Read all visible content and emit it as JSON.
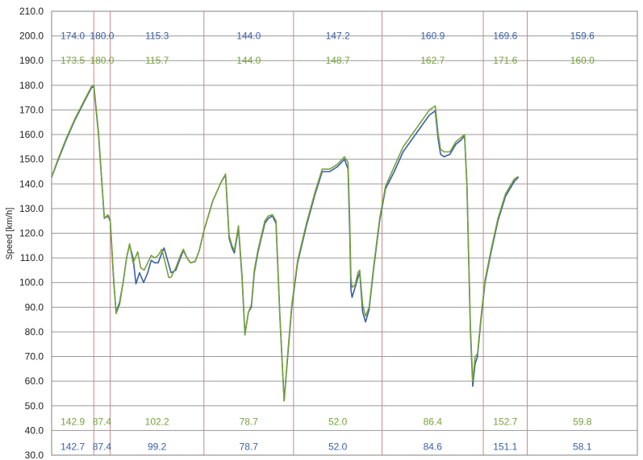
{
  "chart_data": {
    "type": "line",
    "title": "",
    "xlabel": "",
    "ylabel": "Speed [km/h]",
    "ylim": [
      30,
      210
    ],
    "y_ticks": [
      "30.0",
      "40.0",
      "50.0",
      "60.0",
      "70.0",
      "80.0",
      "90.0",
      "100.0",
      "110.0",
      "120.0",
      "130.0",
      "140.0",
      "150.0",
      "160.0",
      "170.0",
      "180.0",
      "190.0",
      "200.0",
      "210.0"
    ],
    "x_range": [
      0,
      1000
    ],
    "grid": true,
    "legend": "none",
    "colors": {
      "blue": "#3a5ea8",
      "green": "#77a13a",
      "hgrid": "#9a9a9a",
      "vgrid": "#c98a8a",
      "frame": "#808080"
    },
    "section_boundaries": [
      0,
      72,
      100,
      260,
      413,
      564,
      737,
      812,
      1000
    ],
    "annotations": {
      "top_blue": [
        "174.0",
        "180.0",
        "115.3",
        "144.0",
        "147.2",
        "160.9",
        "169.6",
        "159.6"
      ],
      "top_green": [
        "173.5",
        "180.0",
        "115.7",
        "144.0",
        "148.7",
        "162.7",
        "171.6",
        "160.0"
      ],
      "bottom_green": [
        "142.9",
        "87.4",
        "102.2",
        "78.7",
        "52.0",
        "86.4",
        "152.7",
        "59.8"
      ],
      "bottom_blue": [
        "142.7",
        "87.4",
        "99.2",
        "78.7",
        "52.0",
        "84.6",
        "151.1",
        "58.1"
      ]
    },
    "series": [
      {
        "color": "blue",
        "points": [
          [
            0,
            142.7
          ],
          [
            10,
            149
          ],
          [
            25,
            158
          ],
          [
            40,
            166
          ],
          [
            55,
            173
          ],
          [
            68,
            179
          ],
          [
            72,
            179.6
          ],
          [
            80,
            160
          ],
          [
            90,
            126
          ],
          [
            96,
            127
          ],
          [
            100,
            125
          ],
          [
            106,
            100
          ],
          [
            110,
            88
          ],
          [
            116,
            92
          ],
          [
            122,
            100
          ],
          [
            128,
            110
          ],
          [
            133,
            115.3
          ],
          [
            139,
            110
          ],
          [
            144,
            99.5
          ],
          [
            150,
            104
          ],
          [
            157,
            100
          ],
          [
            164,
            104
          ],
          [
            170,
            109
          ],
          [
            176,
            108
          ],
          [
            182,
            108
          ],
          [
            188,
            112
          ],
          [
            192,
            114
          ],
          [
            198,
            109
          ],
          [
            204,
            104
          ],
          [
            212,
            105
          ],
          [
            220,
            110
          ],
          [
            225,
            113
          ],
          [
            231,
            110
          ],
          [
            237,
            108
          ],
          [
            245,
            108.5
          ],
          [
            252,
            113
          ],
          [
            260,
            121
          ],
          [
            275,
            133
          ],
          [
            290,
            141
          ],
          [
            297,
            143.5
          ],
          [
            303,
            118
          ],
          [
            308,
            114
          ],
          [
            312,
            112
          ],
          [
            319,
            122
          ],
          [
            325,
            102
          ],
          [
            330,
            79
          ],
          [
            336,
            88
          ],
          [
            341,
            90
          ],
          [
            346,
            104
          ],
          [
            352,
            112
          ],
          [
            358,
            118
          ],
          [
            364,
            124
          ],
          [
            370,
            126
          ],
          [
            377,
            127
          ],
          [
            383,
            124
          ],
          [
            390,
            85
          ],
          [
            397,
            52
          ],
          [
            403,
            70
          ],
          [
            410,
            90
          ],
          [
            420,
            108
          ],
          [
            435,
            123
          ],
          [
            450,
            136
          ],
          [
            462,
            145
          ],
          [
            475,
            145
          ],
          [
            488,
            147
          ],
          [
            500,
            150
          ],
          [
            506,
            146
          ],
          [
            509,
            120
          ],
          [
            511,
            97
          ],
          [
            513,
            94
          ],
          [
            518,
            98
          ],
          [
            523,
            102
          ],
          [
            526,
            104
          ],
          [
            531,
            88
          ],
          [
            536,
            84
          ],
          [
            542,
            89
          ],
          [
            550,
            106
          ],
          [
            560,
            125
          ],
          [
            570,
            138
          ],
          [
            585,
            145
          ],
          [
            600,
            153
          ],
          [
            615,
            158
          ],
          [
            630,
            163
          ],
          [
            645,
            168
          ],
          [
            655,
            169.6
          ],
          [
            660,
            158
          ],
          [
            664,
            152
          ],
          [
            670,
            151
          ],
          [
            680,
            152
          ],
          [
            690,
            156
          ],
          [
            700,
            158
          ],
          [
            705,
            159.6
          ],
          [
            709,
            140
          ],
          [
            712,
            110
          ],
          [
            715,
            80
          ],
          [
            719,
            58
          ],
          [
            723,
            67
          ],
          [
            727,
            70
          ],
          [
            733,
            85
          ],
          [
            740,
            100
          ],
          [
            750,
            112
          ],
          [
            762,
            125
          ],
          [
            775,
            135
          ],
          [
            790,
            141
          ],
          [
            797,
            142.7
          ]
        ]
      },
      {
        "color": "green",
        "points": [
          [
            0,
            142.9
          ],
          [
            10,
            149.5
          ],
          [
            25,
            158.5
          ],
          [
            40,
            166.5
          ],
          [
            55,
            173.5
          ],
          [
            68,
            179.5
          ],
          [
            72,
            180
          ],
          [
            80,
            161
          ],
          [
            90,
            126
          ],
          [
            96,
            127.5
          ],
          [
            100,
            125.5
          ],
          [
            106,
            101
          ],
          [
            110,
            87.4
          ],
          [
            116,
            91
          ],
          [
            122,
            100
          ],
          [
            128,
            110
          ],
          [
            133,
            115.7
          ],
          [
            139,
            108
          ],
          [
            143,
            110
          ],
          [
            147,
            112.5
          ],
          [
            152,
            106
          ],
          [
            158,
            105
          ],
          [
            164,
            108
          ],
          [
            170,
            111
          ],
          [
            176,
            110
          ],
          [
            182,
            111
          ],
          [
            188,
            113.5
          ],
          [
            194,
            108
          ],
          [
            200,
            102
          ],
          [
            204,
            102.2
          ],
          [
            212,
            106
          ],
          [
            220,
            111
          ],
          [
            225,
            113.5
          ],
          [
            231,
            110
          ],
          [
            237,
            108
          ],
          [
            245,
            108.5
          ],
          [
            252,
            113
          ],
          [
            260,
            121
          ],
          [
            275,
            133
          ],
          [
            290,
            141
          ],
          [
            297,
            144
          ],
          [
            303,
            119
          ],
          [
            308,
            115
          ],
          [
            312,
            113
          ],
          [
            319,
            123
          ],
          [
            325,
            103
          ],
          [
            330,
            78.7
          ],
          [
            336,
            88
          ],
          [
            341,
            91
          ],
          [
            346,
            105
          ],
          [
            352,
            113
          ],
          [
            358,
            119
          ],
          [
            364,
            125
          ],
          [
            370,
            127
          ],
          [
            377,
            127.5
          ],
          [
            383,
            125
          ],
          [
            390,
            85
          ],
          [
            397,
            52
          ],
          [
            403,
            71
          ],
          [
            410,
            91
          ],
          [
            420,
            109
          ],
          [
            435,
            124
          ],
          [
            450,
            137
          ],
          [
            462,
            146
          ],
          [
            475,
            146
          ],
          [
            488,
            148
          ],
          [
            500,
            151
          ],
          [
            506,
            148.7
          ],
          [
            509,
            125
          ],
          [
            511,
            102
          ],
          [
            513,
            98
          ],
          [
            518,
            99
          ],
          [
            523,
            104
          ],
          [
            526,
            105
          ],
          [
            531,
            91
          ],
          [
            536,
            86.4
          ],
          [
            542,
            90
          ],
          [
            550,
            107
          ],
          [
            560,
            126
          ],
          [
            570,
            139
          ],
          [
            585,
            147
          ],
          [
            600,
            155
          ],
          [
            615,
            160
          ],
          [
            630,
            165
          ],
          [
            645,
            170
          ],
          [
            655,
            171.6
          ],
          [
            660,
            160
          ],
          [
            664,
            154
          ],
          [
            670,
            153
          ],
          [
            680,
            153
          ],
          [
            690,
            157
          ],
          [
            700,
            159
          ],
          [
            705,
            160
          ],
          [
            709,
            141
          ],
          [
            712,
            111
          ],
          [
            715,
            82
          ],
          [
            719,
            59.8
          ],
          [
            723,
            70
          ],
          [
            727,
            71
          ],
          [
            733,
            86
          ],
          [
            740,
            101
          ],
          [
            750,
            113
          ],
          [
            762,
            126
          ],
          [
            775,
            136
          ],
          [
            790,
            142
          ],
          [
            797,
            143
          ]
        ]
      }
    ]
  }
}
